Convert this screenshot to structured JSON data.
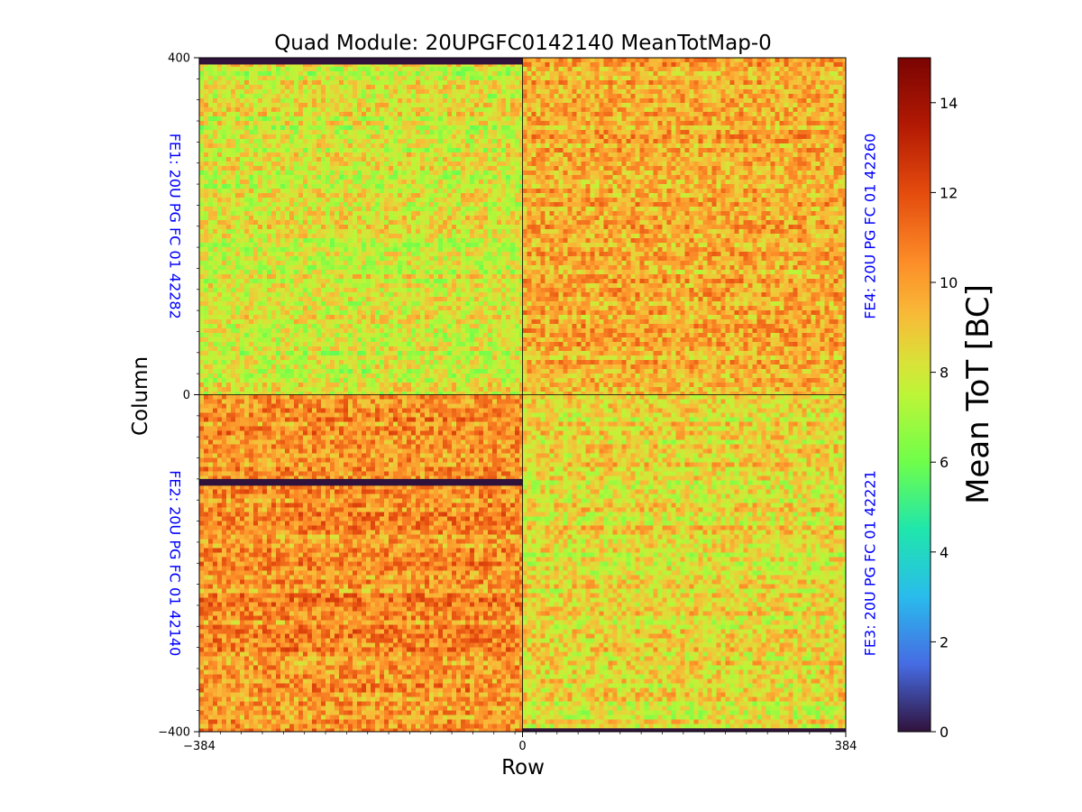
{
  "chart_data": {
    "type": "heatmap",
    "title": "Quad Module: 20UPGFC0142140 MeanTotMap-0",
    "xlabel": "Row",
    "ylabel": "Column",
    "xlim": [
      -384,
      384
    ],
    "ylim": [
      -400,
      400
    ],
    "xticks": [
      "−384",
      "0",
      "384"
    ],
    "yticks": [
      "400",
      "0",
      "−400"
    ],
    "colorbar": {
      "label": "Mean ToT [BC]",
      "range": [
        0,
        15
      ],
      "ticks": [
        "0",
        "2",
        "4",
        "6",
        "8",
        "10",
        "12",
        "14"
      ],
      "colormap": "turbo"
    },
    "chips": [
      {
        "name": "FE1: 20U PG FC 01 42282",
        "x_range": [
          -384,
          0
        ],
        "y_range": [
          0,
          400
        ],
        "label_side": "left",
        "approx_mean_tot": 8.0,
        "dead_band_y": [
          392,
          400
        ]
      },
      {
        "name": "FE2: 20U PG FC 01 42140",
        "x_range": [
          -384,
          0
        ],
        "y_range": [
          -400,
          0
        ],
        "label_side": "left",
        "approx_mean_tot": 10.3,
        "dead_band_y": [
          -108,
          -100
        ]
      },
      {
        "name": "FE3: 20U PG FC 01 42221",
        "x_range": [
          0,
          384
        ],
        "y_range": [
          -400,
          0
        ],
        "label_side": "right",
        "approx_mean_tot": 8.5,
        "dead_band_y": [
          -400,
          -396
        ]
      },
      {
        "name": "FE4: 20U PG FC 01 42260",
        "x_range": [
          0,
          384
        ],
        "y_range": [
          0,
          400
        ],
        "label_side": "right",
        "approx_mean_tot": 9.6,
        "dead_band_y": null
      }
    ],
    "grid": false,
    "legend": "none"
  }
}
